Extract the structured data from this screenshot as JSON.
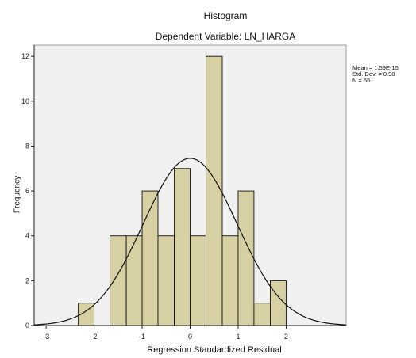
{
  "chart_data": {
    "type": "bar",
    "title": "Histogram",
    "subtitle": "Dependent Variable: LN_HARGA",
    "xlabel": "Regression Standardized Residual",
    "ylabel": "Frequency",
    "xlim": [
      -3.25,
      3.25
    ],
    "ylim": [
      0,
      12.5
    ],
    "x_ticks": [
      -3,
      -2,
      -1,
      0,
      1,
      2
    ],
    "x_tick_labels": [
      "-3",
      "-2",
      "-1",
      "0",
      "1",
      "2"
    ],
    "y_ticks": [
      0,
      2,
      4,
      6,
      8,
      10,
      12
    ],
    "y_tick_labels": [
      "0",
      "2",
      "4",
      "6",
      "8",
      "10",
      "12"
    ],
    "bins": [
      {
        "x0": -2.33,
        "x1": -2.0,
        "value": 1
      },
      {
        "x0": -1.67,
        "x1": -1.33,
        "value": 4
      },
      {
        "x0": -1.33,
        "x1": -1.0,
        "value": 4
      },
      {
        "x0": -1.0,
        "x1": -0.67,
        "value": 6
      },
      {
        "x0": -0.67,
        "x1": -0.33,
        "value": 4
      },
      {
        "x0": -0.33,
        "x1": 0.0,
        "value": 7
      },
      {
        "x0": 0.0,
        "x1": 0.33,
        "value": 4
      },
      {
        "x0": 0.33,
        "x1": 0.67,
        "value": 12
      },
      {
        "x0": 0.67,
        "x1": 1.0,
        "value": 4
      },
      {
        "x0": 1.0,
        "x1": 1.33,
        "value": 6
      },
      {
        "x0": 1.33,
        "x1": 1.67,
        "value": 1
      },
      {
        "x0": 1.67,
        "x1": 2.0,
        "value": 2
      }
    ],
    "normal_curve": {
      "mean": 0.0,
      "sd": 0.98,
      "n": 55,
      "bin_width": 0.333
    },
    "stats": [
      "Mean = 1.59E-15",
      "Std. Dev. = 0.98",
      "N = 55"
    ],
    "colors": {
      "bar_fill": "#d6d0a3",
      "bar_stroke": "#111111",
      "plot_bg": "#f0f0f0",
      "curve": "#111111"
    }
  }
}
